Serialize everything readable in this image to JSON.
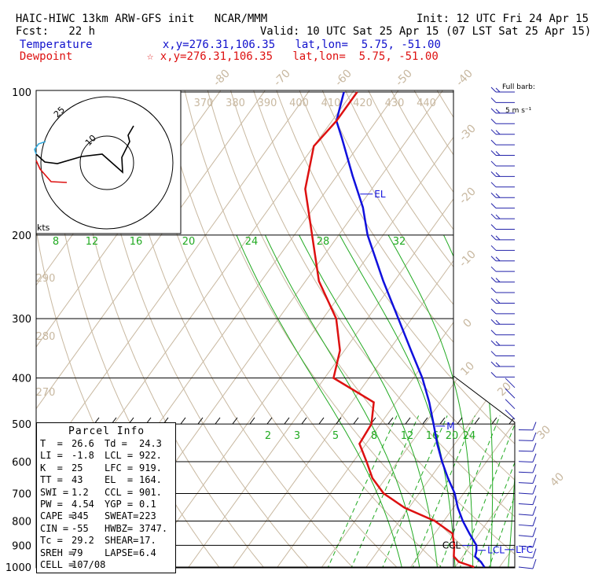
{
  "header": {
    "model_title": "HAIC-HIWC 13km ARW-GFS init",
    "org": "NCAR/MMM",
    "init_label": "Init:",
    "init_time": "12 UTC Fri 24 Apr 15",
    "fcst_label": "Fcst:",
    "fcst_hours": "22 h",
    "valid_label": "Valid:",
    "valid_time": "10 UTC Sat 25 Apr 15 (07 LST Sat 25 Apr 15)",
    "temp_label": "Temperature",
    "temp_loc": "x,y=276.31,106.35",
    "temp_latlon": "lat,lon=  5.75, -51.00",
    "dew_label": "Dewpoint",
    "dew_marker": "☆",
    "dew_loc": "x,y=276.31,106.35",
    "dew_latlon": "lat,lon=  5.75, -51.00"
  },
  "barb_legend": {
    "title": "Full barb:",
    "units": "5 m s⁻¹"
  },
  "colors": {
    "temperature": "#1010dd",
    "dewpoint": "#dd1111",
    "isotherm": "#c8b8a0",
    "dry_adiabat": "#c8b8a0",
    "mixing_ratio": "#22aa22",
    "moist_adiabat": "#22aa22",
    "barbs": "#2222aa"
  },
  "chart_data": {
    "type": "skew-t",
    "y_axis": "pressure (hPa)",
    "pressure_levels": [
      100,
      200,
      300,
      400,
      500,
      600,
      700,
      800,
      900,
      1000
    ],
    "isotherm_labels": [
      -80,
      -70,
      -60,
      -50,
      -40,
      -30,
      -20,
      -10,
      0,
      10,
      20,
      30,
      40
    ],
    "theta_labels": [
      370,
      380,
      390,
      400,
      410,
      420,
      430,
      440
    ],
    "theta_left_labels": [
      290,
      280,
      270
    ],
    "mixing_ratio_upper": [
      8,
      12,
      16,
      20,
      24,
      28,
      32
    ],
    "mixing_ratio_lower": [
      2,
      3,
      5,
      8,
      12,
      16,
      20,
      24
    ],
    "temperature": [
      {
        "p": 1000,
        "t": 26.6
      },
      {
        "p": 975,
        "t": 25.0
      },
      {
        "p": 950,
        "t": 22.8
      },
      {
        "p": 925,
        "t": 22.2
      },
      {
        "p": 900,
        "t": 21.3
      },
      {
        "p": 850,
        "t": 17.8
      },
      {
        "p": 800,
        "t": 14.3
      },
      {
        "p": 750,
        "t": 11.0
      },
      {
        "p": 700,
        "t": 8.0
      },
      {
        "p": 650,
        "t": 4.0
      },
      {
        "p": 600,
        "t": 0.0
      },
      {
        "p": 550,
        "t": -4.0
      },
      {
        "p": 500,
        "t": -8.0
      },
      {
        "p": 450,
        "t": -12.5
      },
      {
        "p": 400,
        "t": -18.0
      },
      {
        "p": 350,
        "t": -25.0
      },
      {
        "p": 300,
        "t": -33.0
      },
      {
        "p": 250,
        "t": -42.5
      },
      {
        "p": 200,
        "t": -53.5
      },
      {
        "p": 175,
        "t": -59.0
      },
      {
        "p": 150,
        "t": -66.5
      },
      {
        "p": 125,
        "t": -75.0
      },
      {
        "p": 115,
        "t": -79.0
      },
      {
        "p": 100,
        "t": -82.0
      }
    ],
    "dewpoint": [
      {
        "p": 1000,
        "t": 24.3
      },
      {
        "p": 975,
        "t": 20.0
      },
      {
        "p": 950,
        "t": 18.0
      },
      {
        "p": 900,
        "t": 16.3
      },
      {
        "p": 850,
        "t": 14.0
      },
      {
        "p": 800,
        "t": 8.0
      },
      {
        "p": 750,
        "t": -1.0
      },
      {
        "p": 700,
        "t": -8.0
      },
      {
        "p": 650,
        "t": -13.0
      },
      {
        "p": 600,
        "t": -17.0
      },
      {
        "p": 550,
        "t": -21.5
      },
      {
        "p": 500,
        "t": -22.0
      },
      {
        "p": 450,
        "t": -25.0
      },
      {
        "p": 400,
        "t": -38.0
      },
      {
        "p": 350,
        "t": -41.0
      },
      {
        "p": 300,
        "t": -47.0
      },
      {
        "p": 250,
        "t": -57.0
      },
      {
        "p": 200,
        "t": -66.0
      },
      {
        "p": 160,
        "t": -75.0
      },
      {
        "p": 130,
        "t": -80.0
      },
      {
        "p": 115,
        "t": -79.0
      },
      {
        "p": 100,
        "t": -79.0
      }
    ],
    "curve_labels": [
      {
        "text": "EL",
        "p": 164,
        "series": "temperature"
      },
      {
        "text": "M",
        "p": 505,
        "series": "temperature"
      },
      {
        "text": "CCL",
        "p": 901,
        "series": "temperature"
      },
      {
        "text": "LCL",
        "p": 922,
        "series": "temperature"
      },
      {
        "text": "LFC",
        "p": 919,
        "series": "temperature"
      }
    ],
    "hodograph": {
      "ring_labels": [
        "10",
        "25"
      ],
      "axis_label": "kts"
    },
    "wind_barbs_count": 46
  },
  "parcel": {
    "title": "Parcel Info",
    "rows": [
      [
        "T  =",
        "26.6",
        "Td =",
        "24.3"
      ],
      [
        "LI =",
        "-1.8",
        "LCL =",
        "922."
      ],
      [
        "K  =",
        "25",
        "LFC =",
        "919."
      ],
      [
        "TT =",
        "43",
        "EL  =",
        "164."
      ],
      [
        "SWI =",
        "1.2",
        "CCL =",
        "901."
      ],
      [
        "PW =",
        "4.54",
        "YGP =",
        "0.1"
      ],
      [
        "CAPE =",
        "345",
        "SWEAT=",
        "223"
      ],
      [
        "CIN =",
        "-55",
        "HWBZ=",
        "3747."
      ],
      [
        "Tc =",
        "29.2",
        "SHEAR=",
        "17."
      ],
      [
        "SREH =",
        "79",
        "LAPSE=",
        "6.4"
      ],
      [
        "CELL =",
        "107/08",
        "",
        ""
      ]
    ]
  }
}
